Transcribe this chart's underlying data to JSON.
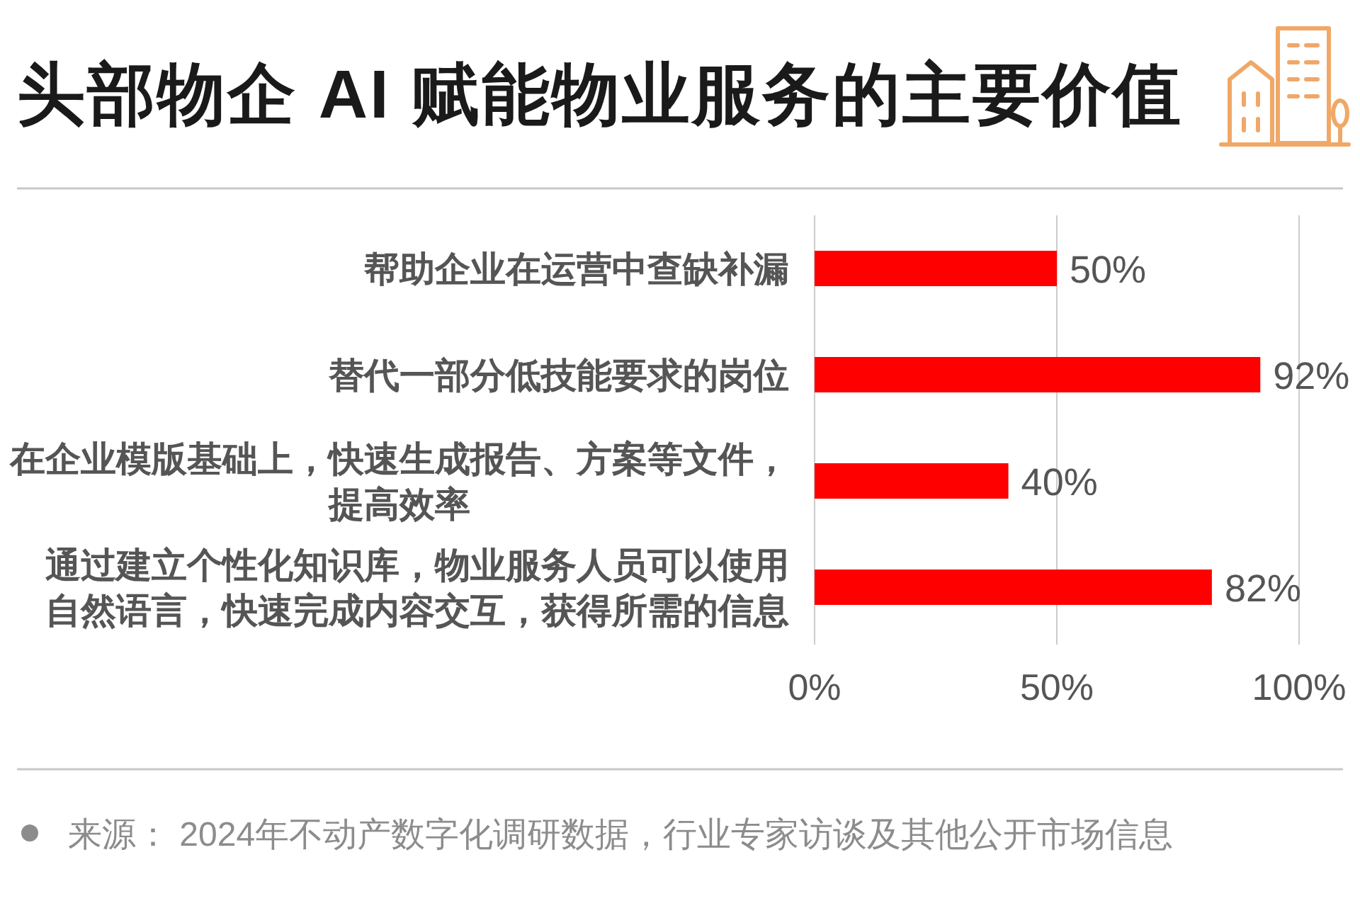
{
  "chart_data": {
    "type": "bar",
    "orientation": "horizontal",
    "title": "头部物企 AI 赋能物业服务的主要价值",
    "categories": [
      "帮助企业在运营中查缺补漏",
      "替代一部分低技能要求的岗位",
      "在企业模版基础上，快速生成报告、方案等文件，提高效率",
      "通过建立个性化知识库，物业服务人员可以使用自然语言，快速完成内容交互，获得所需的信息"
    ],
    "values": [
      50,
      92,
      40,
      82
    ],
    "color": "#ff0000",
    "value_labels": [
      "50%",
      "92%",
      "40%",
      "82%"
    ],
    "xlim": [
      0,
      100
    ],
    "xticks": [
      {
        "value": 0,
        "label": "0%"
      },
      {
        "value": 50,
        "label": "50%"
      },
      {
        "value": 100,
        "label": "100%"
      }
    ],
    "grid": "x",
    "annotations": [
      "来源： 2024年不动产数字化调研数据，行业专家访谈及其他公开市场信息"
    ]
  }
}
